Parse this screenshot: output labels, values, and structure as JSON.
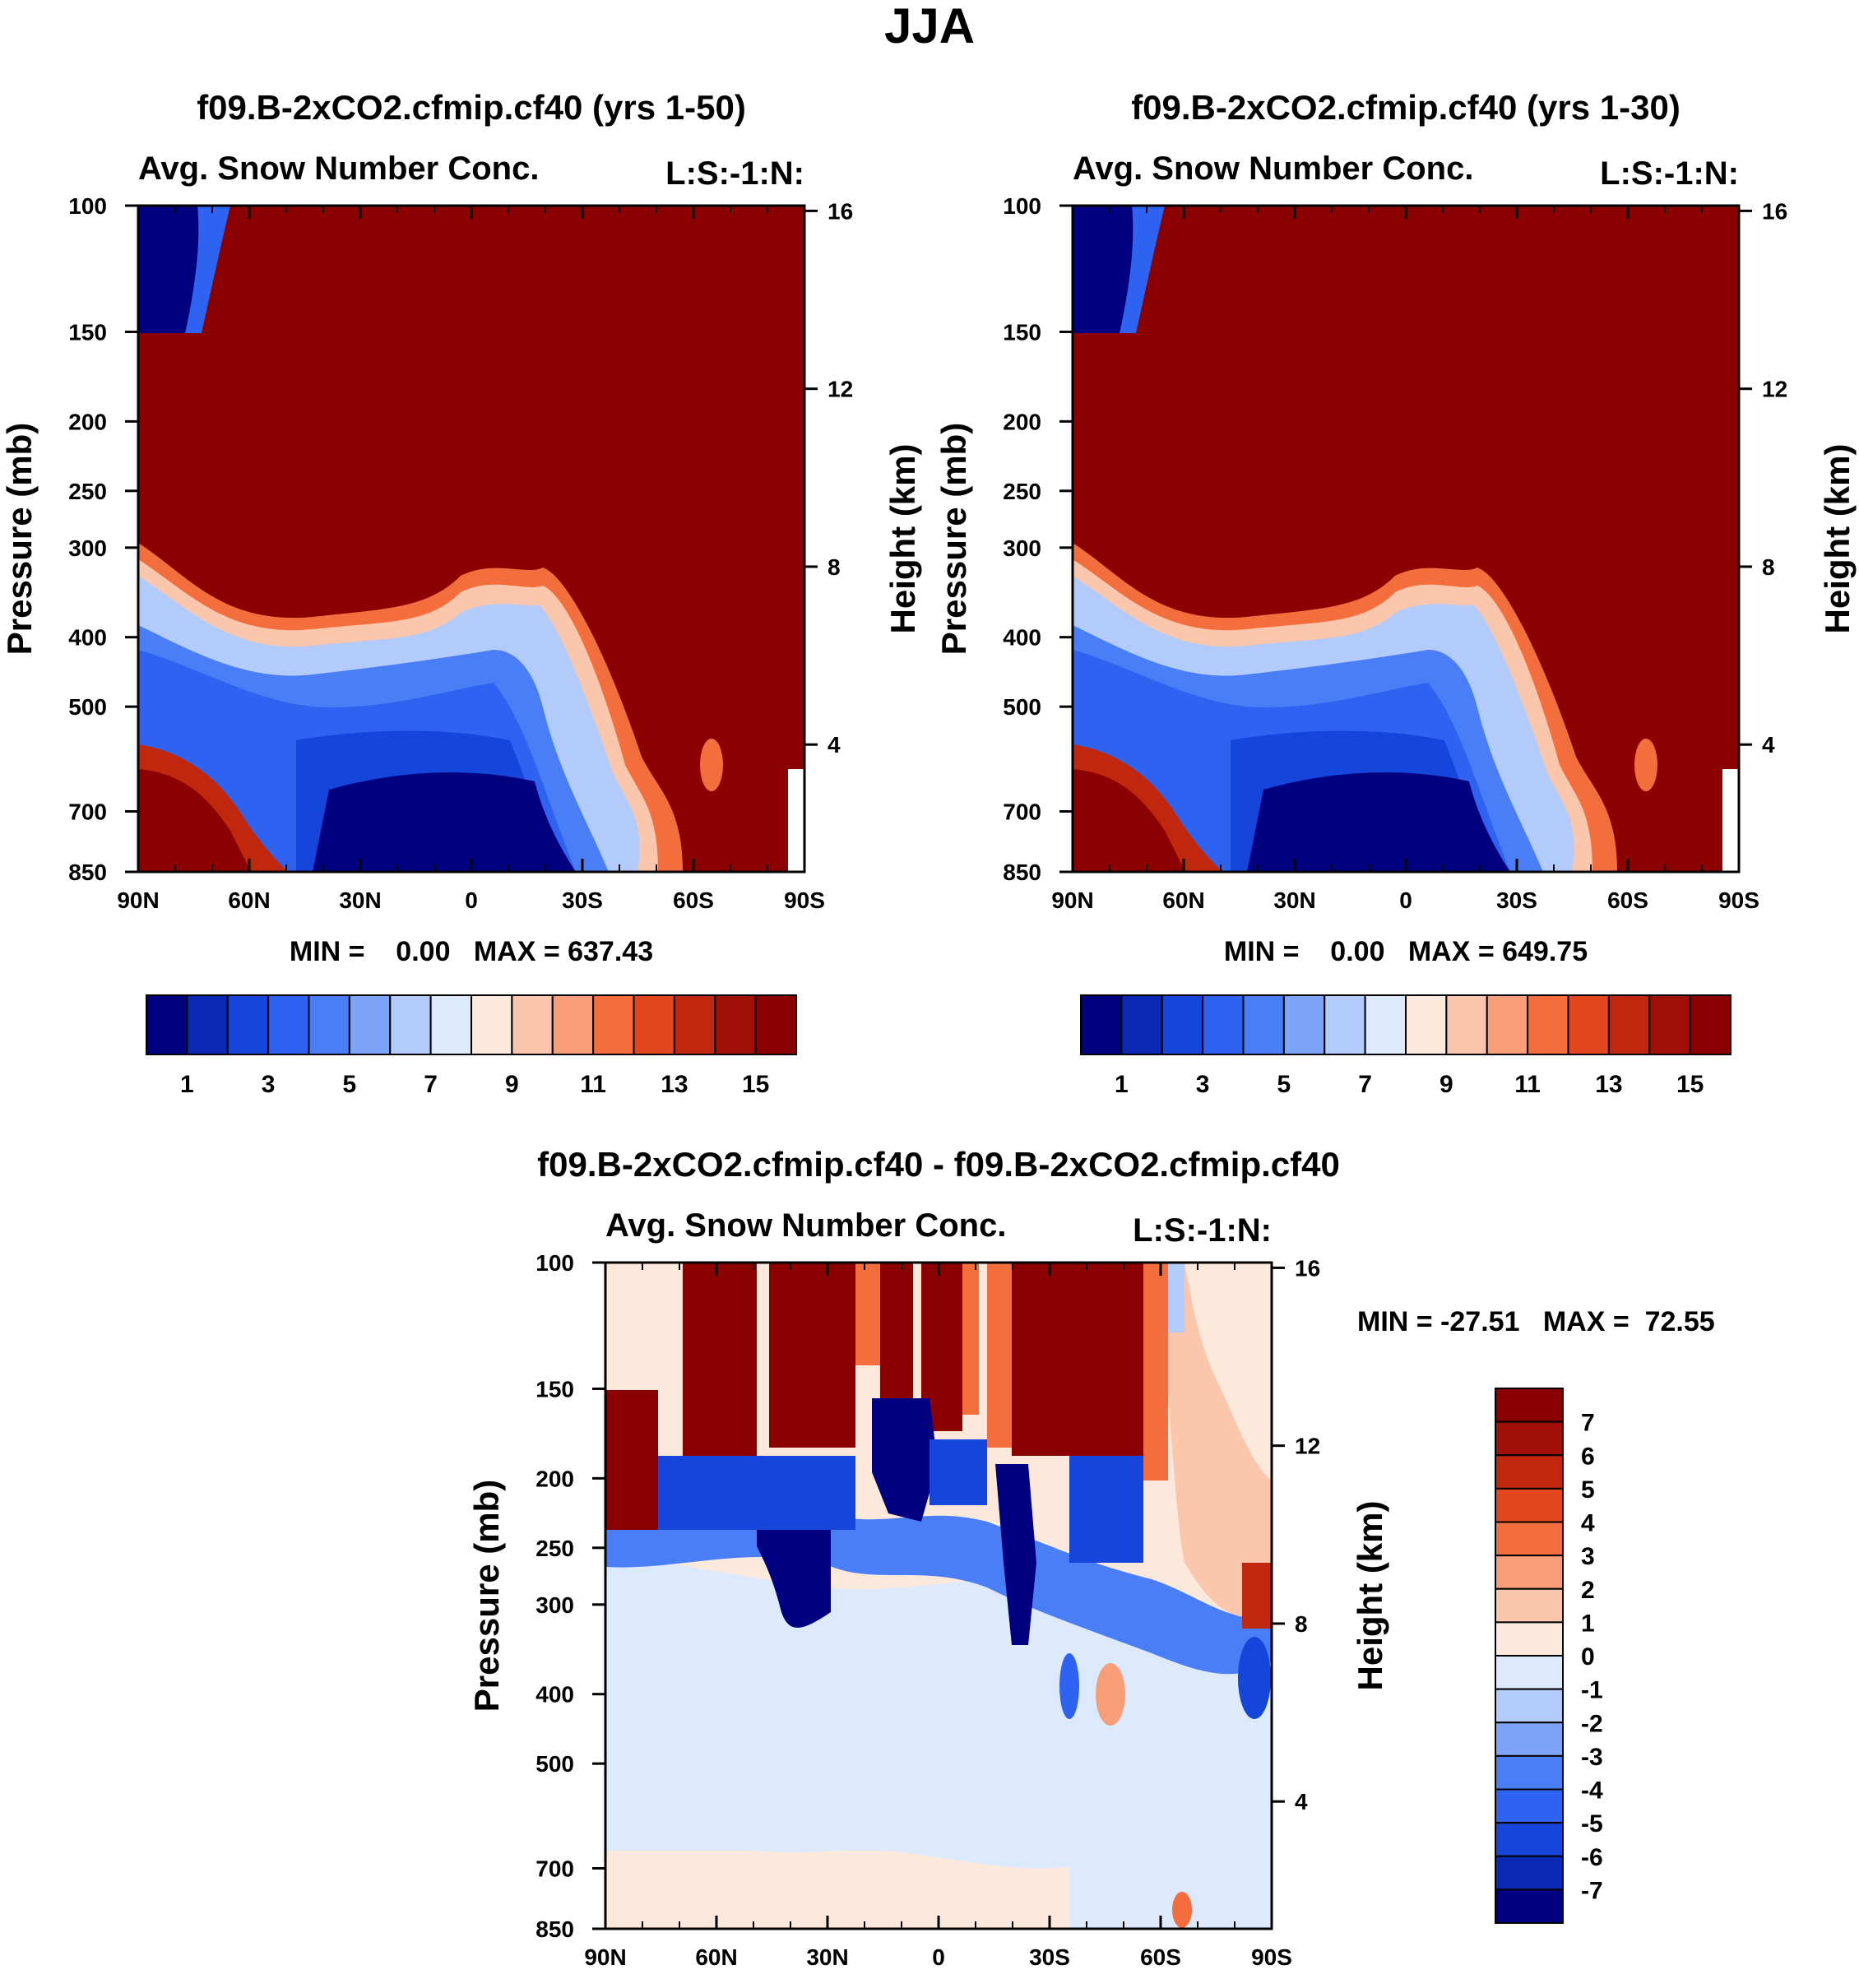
{
  "figure": {
    "title": "JJA"
  },
  "chart_data": [
    {
      "type": "heatmap",
      "title": "f09.B-2xCO2.cfmip.cf40 (yrs 1-50)",
      "left_label": "Avg. Snow Number Conc.",
      "right_label": "L:S:-1:N:",
      "ylabel": "Pressure (mb)",
      "ylabel_right": "Height (km)",
      "xlim": [
        90,
        -90
      ],
      "ylim": [
        850,
        100
      ],
      "x_ticks": [
        "90N",
        "60N",
        "30N",
        "0",
        "30S",
        "60S",
        "90S"
      ],
      "y_ticks": [
        "100",
        "150",
        "200",
        "250",
        "300",
        "400",
        "500",
        "700",
        "850"
      ],
      "y_right_ticks": [
        "16",
        "12",
        "8",
        "4"
      ],
      "stats": "MIN =    0.00   MAX = 637.43",
      "colorbar_labels": [
        "1",
        "3",
        "5",
        "7",
        "9",
        "11",
        "13",
        "15"
      ],
      "colorbar_levels": 16
    },
    {
      "type": "heatmap",
      "title": "f09.B-2xCO2.cfmip.cf40 (yrs 1-30)",
      "left_label": "Avg. Snow Number Conc.",
      "right_label": "L:S:-1:N:",
      "ylabel": "Pressure (mb)",
      "ylabel_right": "Height (km)",
      "xlim": [
        90,
        -90
      ],
      "ylim": [
        850,
        100
      ],
      "x_ticks": [
        "90N",
        "60N",
        "30N",
        "0",
        "30S",
        "60S",
        "90S"
      ],
      "y_ticks": [
        "100",
        "150",
        "200",
        "250",
        "300",
        "400",
        "500",
        "700",
        "850"
      ],
      "y_right_ticks": [
        "16",
        "12",
        "8",
        "4"
      ],
      "stats": "MIN =    0.00   MAX = 649.75",
      "colorbar_labels": [
        "1",
        "3",
        "5",
        "7",
        "9",
        "11",
        "13",
        "15"
      ],
      "colorbar_levels": 16
    },
    {
      "type": "heatmap",
      "title": "f09.B-2xCO2.cfmip.cf40 - f09.B-2xCO2.cfmip.cf40",
      "left_label": "Avg. Snow Number Conc.",
      "right_label": "L:S:-1:N:",
      "ylabel": "Pressure (mb)",
      "ylabel_right": "Height (km)",
      "xlim": [
        90,
        -90
      ],
      "ylim": [
        850,
        100
      ],
      "x_ticks": [
        "90N",
        "60N",
        "30N",
        "0",
        "30S",
        "60S",
        "90S"
      ],
      "y_ticks": [
        "100",
        "150",
        "200",
        "250",
        "300",
        "400",
        "500",
        "700",
        "850"
      ],
      "y_right_ticks": [
        "16",
        "12",
        "8",
        "4"
      ],
      "stats": "MIN = -27.51   MAX =  72.55",
      "colorbar_labels": [
        "7",
        "6",
        "5",
        "4",
        "3",
        "2",
        "1",
        "0",
        "-1",
        "-2",
        "-3",
        "-4",
        "-5",
        "-6",
        "-7"
      ],
      "colorbar_levels": 16
    }
  ],
  "colors": {
    "palette": [
      "#000080",
      "#0a28b4",
      "#1645dc",
      "#2d63f0",
      "#4a7ef6",
      "#7ea4f8",
      "#b3cbfa",
      "#dde9fc",
      "#fde9dc",
      "#fac6ac",
      "#f79d77",
      "#f46d3c",
      "#e3471e",
      "#c0270d",
      "#a01006",
      "#8b0000"
    ],
    "background": "#ffffff",
    "frame": "#000000"
  }
}
